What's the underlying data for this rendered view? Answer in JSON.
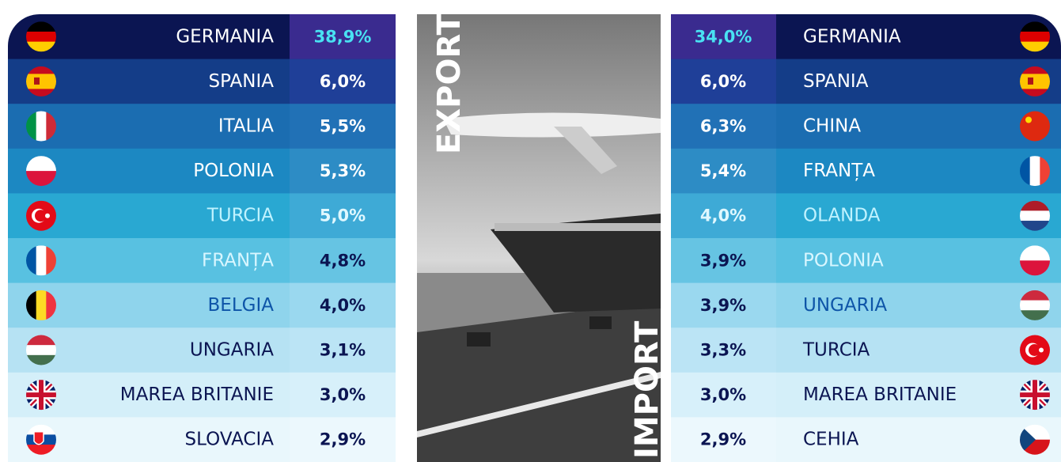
{
  "export": {
    "label": "EXPORT",
    "rows": [
      {
        "country": "GERMANIA",
        "share": "38,9%"
      },
      {
        "country": "SPANIA",
        "share": "6,0%"
      },
      {
        "country": "ITALIA",
        "share": "5,5%"
      },
      {
        "country": "POLONIA",
        "share": "5,3%"
      },
      {
        "country": "TURCIA",
        "share": "5,0%"
      },
      {
        "country": "FRANȚA",
        "share": "4,8%"
      },
      {
        "country": "BELGIA",
        "share": "4,0%"
      },
      {
        "country": "UNGARIA",
        "share": "3,1%"
      },
      {
        "country": "MAREA BRITANIE",
        "share": "3,0%"
      },
      {
        "country": "SLOVACIA",
        "share": "2,9%"
      }
    ]
  },
  "import": {
    "label": "IMPORT",
    "rows": [
      {
        "country": "GERMANIA",
        "share": "34,0%"
      },
      {
        "country": "SPANIA",
        "share": "6,0%"
      },
      {
        "country": "CHINA",
        "share": "6,3%"
      },
      {
        "country": "FRANȚA",
        "share": "5,4%"
      },
      {
        "country": "OLANDA",
        "share": "4,0%"
      },
      {
        "country": "POLONIA",
        "share": "3,9%"
      },
      {
        "country": "UNGARIA",
        "share": "3,9%"
      },
      {
        "country": "TURCIA",
        "share": "3,3%"
      },
      {
        "country": "MAREA BRITANIE",
        "share": "3,0%"
      },
      {
        "country": "CEHIA",
        "share": "2,9%"
      }
    ]
  }
}
